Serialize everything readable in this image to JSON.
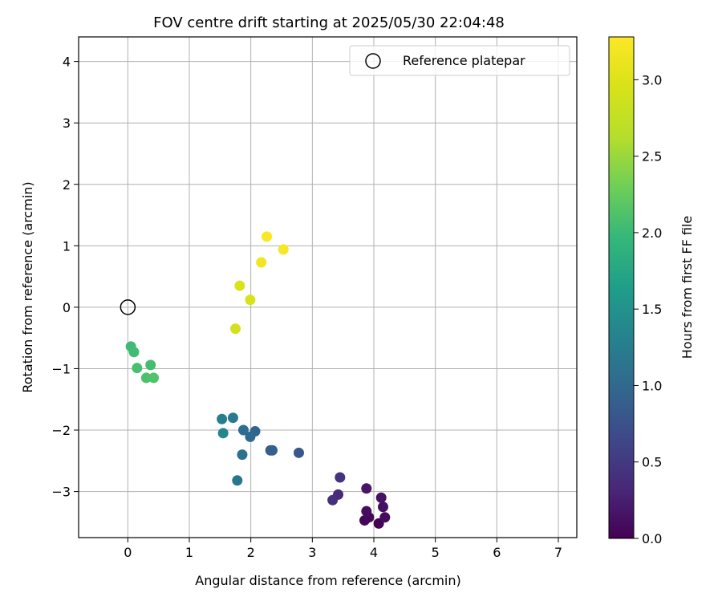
{
  "chart_data": {
    "type": "scatter",
    "title": "FOV centre drift starting at 2025/05/30 22:04:48",
    "xlabel": "Angular distance from reference (arcmin)",
    "ylabel": "Rotation from reference (arcmin)",
    "xlim": [
      -0.8,
      7.3
    ],
    "ylim": [
      -3.75,
      4.4
    ],
    "xticks": [
      0,
      1,
      2,
      3,
      4,
      5,
      6,
      7
    ],
    "yticks": [
      -3,
      -2,
      -1,
      0,
      1,
      2,
      3,
      4
    ],
    "grid": true,
    "legend": {
      "placement": "upper-right",
      "entries": [
        "Reference platepar"
      ]
    },
    "reference_point": {
      "x": 0,
      "y": 0
    },
    "colorbar": {
      "label": "Hours from first FF file",
      "colormap": "viridis",
      "range": [
        0.0,
        3.28
      ],
      "ticks": [
        0.0,
        0.5,
        1.0,
        1.5,
        2.0,
        2.5,
        3.0
      ],
      "tick_labels": [
        "0.0",
        "0.5",
        "1.0",
        "1.5",
        "2.0",
        "2.5",
        "3.0"
      ]
    },
    "points": [
      {
        "x": 4.08,
        "y": -3.52,
        "c": 0.0
      },
      {
        "x": 3.85,
        "y": -3.47,
        "c": 0.04
      },
      {
        "x": 3.92,
        "y": -3.42,
        "c": 0.06
      },
      {
        "x": 4.18,
        "y": -3.42,
        "c": 0.08
      },
      {
        "x": 3.88,
        "y": -3.32,
        "c": 0.1
      },
      {
        "x": 4.15,
        "y": -3.25,
        "c": 0.12
      },
      {
        "x": 4.12,
        "y": -3.1,
        "c": 0.14
      },
      {
        "x": 3.88,
        "y": -2.95,
        "c": 0.17
      },
      {
        "x": 3.42,
        "y": -3.05,
        "c": 0.35
      },
      {
        "x": 3.33,
        "y": -3.14,
        "c": 0.4
      },
      {
        "x": 3.45,
        "y": -2.77,
        "c": 0.45
      },
      {
        "x": 2.78,
        "y": -2.37,
        "c": 0.8
      },
      {
        "x": 2.32,
        "y": -2.33,
        "c": 0.85
      },
      {
        "x": 2.35,
        "y": -2.33,
        "c": 0.9
      },
      {
        "x": 2.07,
        "y": -2.02,
        "c": 0.95
      },
      {
        "x": 1.99,
        "y": -2.11,
        "c": 1.0
      },
      {
        "x": 1.88,
        "y": -2.0,
        "c": 1.05
      },
      {
        "x": 1.86,
        "y": -2.4,
        "c": 1.1
      },
      {
        "x": 1.78,
        "y": -2.82,
        "c": 1.15
      },
      {
        "x": 1.71,
        "y": -1.8,
        "c": 1.2
      },
      {
        "x": 1.53,
        "y": -1.82,
        "c": 1.28
      },
      {
        "x": 1.55,
        "y": -2.05,
        "c": 1.35
      },
      {
        "x": 0.05,
        "y": -0.64,
        "c": 2.02
      },
      {
        "x": 0.1,
        "y": -0.73,
        "c": 2.04
      },
      {
        "x": 0.37,
        "y": -0.94,
        "c": 2.06
      },
      {
        "x": 0.15,
        "y": -0.99,
        "c": 2.08
      },
      {
        "x": 0.3,
        "y": -1.15,
        "c": 2.1
      },
      {
        "x": 0.42,
        "y": -1.15,
        "c": 2.12
      },
      {
        "x": 1.75,
        "y": -0.35,
        "c": 2.9
      },
      {
        "x": 1.99,
        "y": 0.12,
        "c": 2.95
      },
      {
        "x": 1.82,
        "y": 0.35,
        "c": 2.97
      },
      {
        "x": 2.17,
        "y": 0.73,
        "c": 3.18
      },
      {
        "x": 2.53,
        "y": 0.94,
        "c": 3.22
      },
      {
        "x": 2.26,
        "y": 1.15,
        "c": 3.25
      }
    ]
  }
}
